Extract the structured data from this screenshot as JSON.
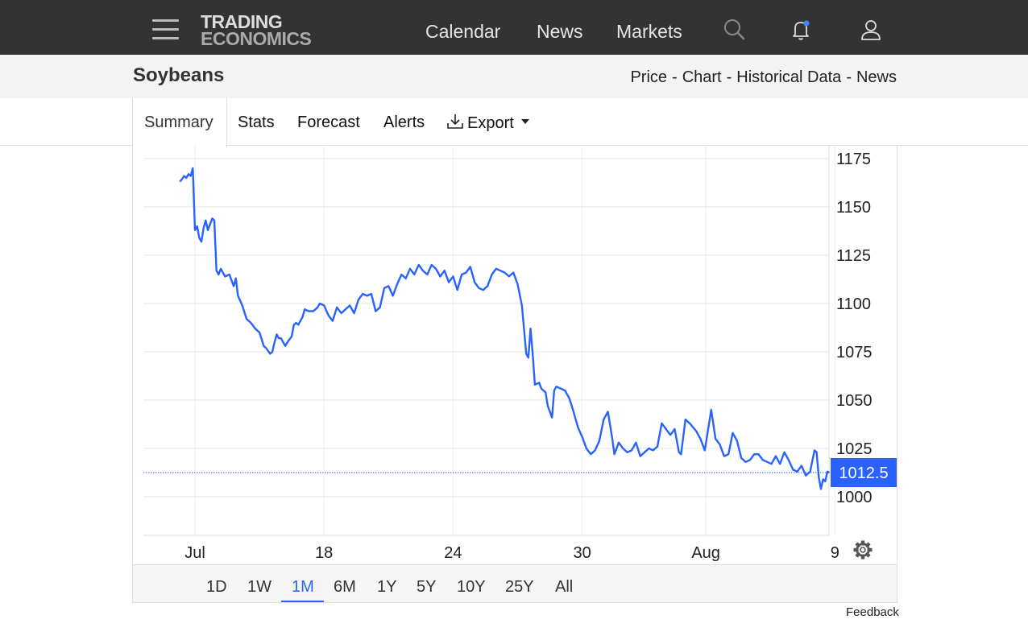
{
  "nav": {
    "logo_line1": "TRADING",
    "logo_line2": "ECONOMICS",
    "links": [
      "Calendar",
      "News",
      "Markets"
    ]
  },
  "header": {
    "title": "Soybeans",
    "breadcrumbs": [
      "Price",
      "Chart",
      "Historical Data",
      "News"
    ],
    "separator": "-"
  },
  "tabs": [
    "Summary",
    "Stats",
    "Forecast",
    "Alerts",
    "Export"
  ],
  "active_tab": "Summary",
  "ranges": [
    "1D",
    "1W",
    "1M",
    "6M",
    "1Y",
    "5Y",
    "10Y",
    "25Y",
    "All"
  ],
  "active_range": "1M",
  "feedback_label": "Feedback",
  "colors": {
    "line": "#2962ff",
    "nav_bg": "#333333",
    "notification_dot": "#4285f4"
  },
  "chart_data": {
    "type": "line",
    "title": "",
    "xlabel": "",
    "ylabel": "",
    "ylim": [
      980,
      1176
    ],
    "yticks": [
      1000,
      1025,
      1050,
      1075,
      1100,
      1125,
      1150,
      1175
    ],
    "xtick_labels": [
      "Jul",
      "18",
      "24",
      "30",
      "Aug",
      "9"
    ],
    "xtick_days": [
      12,
      18,
      24,
      30,
      35.75,
      41.75
    ],
    "last_value_label": "1012.5",
    "last_value": 1012.5,
    "grid": true,
    "series": [
      {
        "x_unit": "day of month, July (values above 31 continue into August)",
        "points": [
          [
            11.3,
            1163
          ],
          [
            11.5,
            1166
          ],
          [
            11.6,
            1165
          ],
          [
            11.7,
            1167
          ],
          [
            11.8,
            1166
          ],
          [
            11.9,
            1170
          ],
          [
            12.0,
            1138
          ],
          [
            12.1,
            1140
          ],
          [
            12.2,
            1134
          ],
          [
            12.3,
            1132
          ],
          [
            12.4,
            1139
          ],
          [
            12.5,
            1143
          ],
          [
            12.6,
            1138
          ],
          [
            12.7,
            1141
          ],
          [
            12.8,
            1144
          ],
          [
            12.9,
            1143
          ],
          [
            13.0,
            1117
          ],
          [
            13.1,
            1115
          ],
          [
            13.2,
            1118
          ],
          [
            13.4,
            1114
          ],
          [
            13.6,
            1115
          ],
          [
            13.8,
            1109
          ],
          [
            13.9,
            1113
          ],
          [
            14.0,
            1104
          ],
          [
            14.2,
            1099
          ],
          [
            14.4,
            1092
          ],
          [
            14.6,
            1090
          ],
          [
            14.8,
            1087
          ],
          [
            15.0,
            1085
          ],
          [
            15.2,
            1078
          ],
          [
            15.3,
            1077
          ],
          [
            15.5,
            1074
          ],
          [
            15.6,
            1075
          ],
          [
            15.7,
            1080
          ],
          [
            15.8,
            1084
          ],
          [
            15.9,
            1082
          ],
          [
            16.0,
            1082
          ],
          [
            16.2,
            1078
          ],
          [
            16.3,
            1080
          ],
          [
            16.5,
            1083
          ],
          [
            16.6,
            1089
          ],
          [
            16.7,
            1090
          ],
          [
            16.8,
            1089
          ],
          [
            17.0,
            1093
          ],
          [
            17.1,
            1097
          ],
          [
            17.3,
            1096
          ],
          [
            17.5,
            1096
          ],
          [
            17.7,
            1098
          ],
          [
            17.8,
            1100
          ],
          [
            18.0,
            1099
          ],
          [
            18.2,
            1094
          ],
          [
            18.4,
            1091
          ],
          [
            18.6,
            1098
          ],
          [
            18.8,
            1095
          ],
          [
            19.0,
            1097
          ],
          [
            19.2,
            1099
          ],
          [
            19.4,
            1095
          ],
          [
            19.6,
            1102
          ],
          [
            19.8,
            1105
          ],
          [
            20.0,
            1104
          ],
          [
            20.2,
            1105
          ],
          [
            20.4,
            1096
          ],
          [
            20.6,
            1098
          ],
          [
            20.8,
            1108
          ],
          [
            21.0,
            1109
          ],
          [
            21.2,
            1104
          ],
          [
            21.4,
            1110
          ],
          [
            21.6,
            1115
          ],
          [
            21.8,
            1113
          ],
          [
            22.0,
            1118
          ],
          [
            22.2,
            1115
          ],
          [
            22.4,
            1120
          ],
          [
            22.6,
            1117
          ],
          [
            22.8,
            1115
          ],
          [
            23.0,
            1120
          ],
          [
            23.2,
            1118
          ],
          [
            23.4,
            1114
          ],
          [
            23.6,
            1117
          ],
          [
            23.8,
            1111
          ],
          [
            24.0,
            1114
          ],
          [
            24.2,
            1107
          ],
          [
            24.4,
            1115
          ],
          [
            24.6,
            1116
          ],
          [
            24.8,
            1119
          ],
          [
            25.0,
            1111
          ],
          [
            25.2,
            1108
          ],
          [
            25.4,
            1107
          ],
          [
            25.6,
            1109
          ],
          [
            25.8,
            1115
          ],
          [
            26.0,
            1118
          ],
          [
            26.2,
            1117
          ],
          [
            26.4,
            1116
          ],
          [
            26.6,
            1114
          ],
          [
            26.8,
            1116
          ],
          [
            27.0,
            1110
          ],
          [
            27.2,
            1099
          ],
          [
            27.4,
            1074
          ],
          [
            27.5,
            1072
          ],
          [
            27.6,
            1087
          ],
          [
            27.7,
            1074
          ],
          [
            27.8,
            1058
          ],
          [
            28.0,
            1059
          ],
          [
            28.1,
            1056
          ],
          [
            28.3,
            1054
          ],
          [
            28.4,
            1047
          ],
          [
            28.6,
            1041
          ],
          [
            28.7,
            1055
          ],
          [
            28.8,
            1057
          ],
          [
            29.0,
            1056
          ],
          [
            29.2,
            1055
          ],
          [
            29.4,
            1051
          ],
          [
            29.6,
            1044
          ],
          [
            29.8,
            1036
          ],
          [
            30.0,
            1031
          ],
          [
            30.2,
            1025
          ],
          [
            30.4,
            1022
          ],
          [
            30.6,
            1024
          ],
          [
            30.8,
            1029
          ],
          [
            31.0,
            1040
          ],
          [
            31.2,
            1044
          ],
          [
            31.4,
            1030
          ],
          [
            31.5,
            1022
          ],
          [
            31.7,
            1028
          ],
          [
            31.9,
            1025
          ],
          [
            32.1,
            1023
          ],
          [
            32.3,
            1024
          ],
          [
            32.5,
            1028
          ],
          [
            32.7,
            1021
          ],
          [
            32.9,
            1023
          ],
          [
            33.1,
            1025
          ],
          [
            33.3,
            1024
          ],
          [
            33.5,
            1026
          ],
          [
            33.7,
            1038
          ],
          [
            33.9,
            1035
          ],
          [
            34.1,
            1032
          ],
          [
            34.3,
            1035
          ],
          [
            34.5,
            1023
          ],
          [
            34.6,
            1022
          ],
          [
            34.8,
            1040
          ],
          [
            35.0,
            1038
          ],
          [
            35.3,
            1034
          ],
          [
            35.5,
            1030
          ],
          [
            35.7,
            1024
          ],
          [
            35.8,
            1031
          ],
          [
            36.0,
            1045
          ],
          [
            36.2,
            1030
          ],
          [
            36.4,
            1027
          ],
          [
            36.6,
            1021
          ],
          [
            36.8,
            1022
          ],
          [
            37.0,
            1033
          ],
          [
            37.2,
            1029
          ],
          [
            37.4,
            1020
          ],
          [
            37.6,
            1018
          ],
          [
            37.8,
            1019
          ],
          [
            38.0,
            1022
          ],
          [
            38.2,
            1022
          ],
          [
            38.4,
            1019
          ],
          [
            38.6,
            1018
          ],
          [
            38.8,
            1017
          ],
          [
            39.0,
            1021
          ],
          [
            39.2,
            1017
          ],
          [
            39.4,
            1023
          ],
          [
            39.6,
            1019
          ],
          [
            39.8,
            1014
          ],
          [
            40.0,
            1013
          ],
          [
            40.2,
            1016
          ],
          [
            40.4,
            1011
          ],
          [
            40.6,
            1013
          ],
          [
            40.8,
            1024
          ],
          [
            40.9,
            1023
          ],
          [
            41.0,
            1010
          ],
          [
            41.1,
            1004
          ],
          [
            41.2,
            1009
          ],
          [
            41.3,
            1008
          ],
          [
            41.4,
            1013
          ],
          [
            41.5,
            1012.5
          ]
        ]
      }
    ]
  }
}
